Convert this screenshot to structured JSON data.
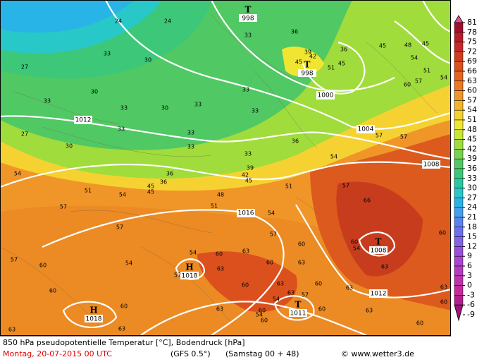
{
  "map": {
    "pressure_centers": [
      {
        "symbol": "T",
        "value": 998
      },
      {
        "symbol": "T",
        "value": 998
      },
      {
        "symbol": "H",
        "value": 1018
      },
      {
        "symbol": "H",
        "value": 1018
      },
      {
        "symbol": "T",
        "value": 1008
      },
      {
        "symbol": "T",
        "value": 1011
      }
    ],
    "isobar_labels": [
      1012,
      1000,
      1004,
      1008,
      1016,
      1012
    ],
    "temperature_labels": [
      24,
      24,
      27,
      33,
      30,
      33,
      36,
      39,
      45,
      42,
      36,
      45,
      51,
      45,
      48,
      45,
      54,
      51,
      54,
      57,
      60,
      30,
      33,
      33,
      30,
      33,
      33,
      33,
      27,
      30,
      33,
      33,
      33,
      33,
      36,
      39,
      42,
      45,
      36,
      36,
      45,
      45,
      48,
      51,
      54,
      51,
      51,
      54,
      57,
      57,
      54,
      57,
      57,
      54,
      57,
      60,
      57,
      66,
      60,
      54,
      63,
      60,
      57,
      60,
      54,
      54,
      60,
      63,
      57,
      63,
      60,
      63,
      60,
      63,
      63,
      54,
      57,
      60,
      63,
      60,
      60,
      60,
      63,
      63,
      63,
      63,
      60,
      60,
      63,
      60,
      54,
      60
    ]
  },
  "colorbar": {
    "ticks": [
      81,
      78,
      75,
      72,
      69,
      66,
      63,
      60,
      57,
      54,
      51,
      48,
      45,
      42,
      39,
      36,
      33,
      30,
      27,
      24,
      21,
      18,
      15,
      12,
      9,
      6,
      3,
      0,
      -3,
      -6,
      -9
    ],
    "colors": [
      "#e8508c",
      "#a0102a",
      "#b41e28",
      "#c82828",
      "#d23c1e",
      "#dc501e",
      "#e6641e",
      "#f07820",
      "#f09628",
      "#f5b428",
      "#f5d232",
      "#f0e632",
      "#c8e632",
      "#a0dc3c",
      "#78d250",
      "#50c864",
      "#3cc878",
      "#28c8a0",
      "#28c8c8",
      "#28b4e6",
      "#46a0f0",
      "#5a82f0",
      "#6e6ef0",
      "#8264e6",
      "#9650dc",
      "#aa46d2",
      "#b43cbe",
      "#be32aa",
      "#c8289a",
      "#b41e8c",
      "#a0147a"
    ]
  },
  "footer": {
    "description": "850 hPa pseudopotentielle Temperatur [°C], Bodendruck [hPa]",
    "date": "Montag, 20-07-2015   00 UTC",
    "model": "(GFS 0.5°)",
    "run": "(Samstag 00 + 48)",
    "credit": "© www.wetter3.de"
  }
}
